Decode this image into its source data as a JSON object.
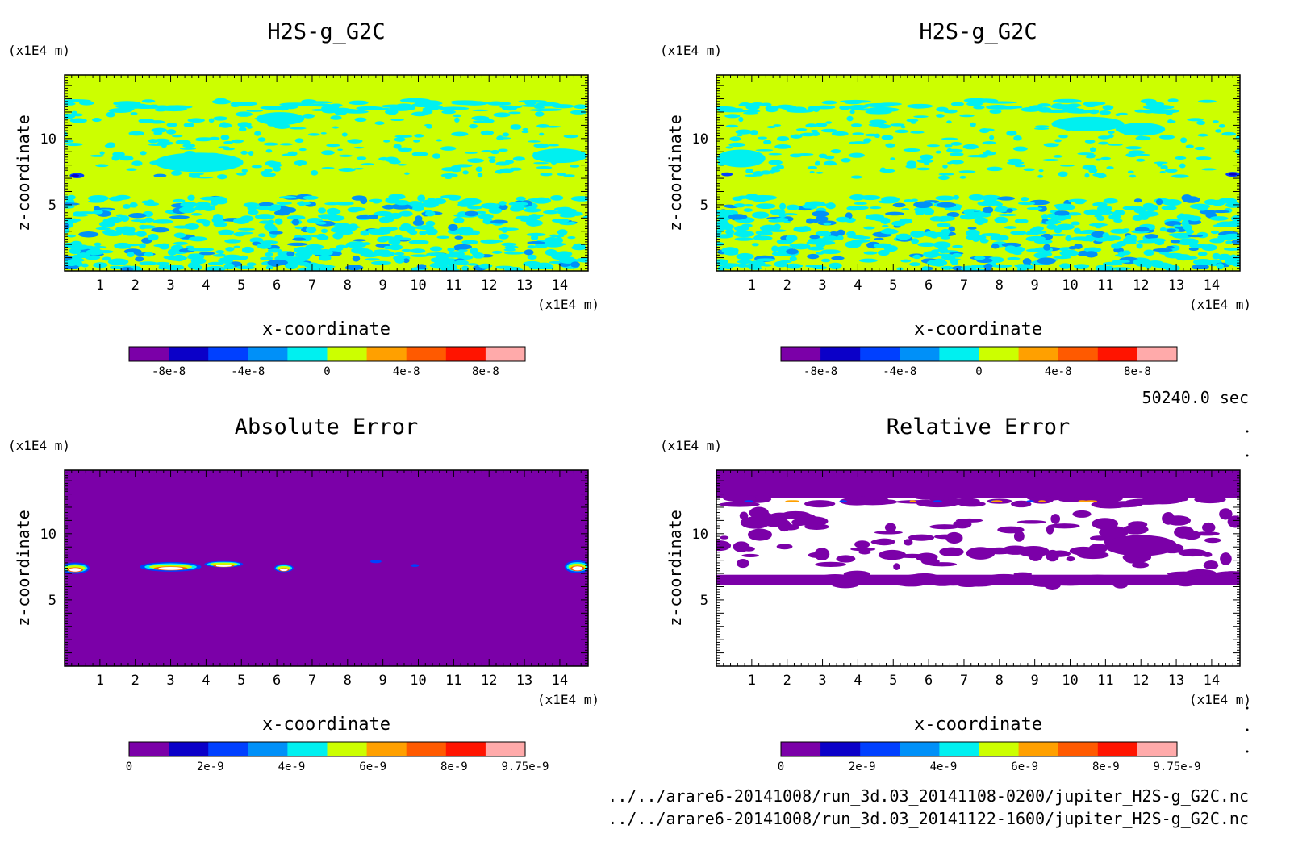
{
  "time_label": "50240.0 sec",
  "files": [
    "../../arare6-20141008/run_3d.03_20141108-0200/jupiter_H2S-g_G2C.nc",
    "../../arare6-20141008/run_3d.03_20141122-1600/jupiter_H2S-g_G2C.nc"
  ],
  "palette": [
    "#7b00a8",
    "#0b00c8",
    "#0040ff",
    "#0090f8",
    "#00f0f0",
    "#ccff00",
    "#ffa000",
    "#ff5a00",
    "#ff1400",
    "#ffaaaa"
  ],
  "chart_data": [
    {
      "type": "heatmap",
      "title": "H2S-g_G2C",
      "xlabel": "x-coordinate",
      "ylabel": "z-coordinate",
      "x_unit": "(x1E4 m)",
      "y_unit": "(x1E4 m)",
      "xlim": [
        0,
        14.8
      ],
      "ylim": [
        0,
        14.8
      ],
      "xticks": [
        "1",
        "2",
        "3",
        "4",
        "5",
        "6",
        "7",
        "8",
        "9",
        "10",
        "11",
        "12",
        "13",
        "14"
      ],
      "yticks": [
        "5",
        "10"
      ],
      "colorbar_labels": [
        "-8e-8",
        "-4e-8",
        "0",
        "4e-8",
        "8e-8"
      ],
      "colorbar_levels": [
        -1e-07,
        -8e-08,
        -6e-08,
        -4e-08,
        -2e-08,
        0,
        2e-08,
        4e-08,
        6e-08,
        8e-08,
        1e-07
      ],
      "pattern": "field_a"
    },
    {
      "type": "heatmap",
      "title": "H2S-g_G2C",
      "xlabel": "x-coordinate",
      "ylabel": "z-coordinate",
      "x_unit": "(x1E4 m)",
      "y_unit": "(x1E4 m)",
      "xlim": [
        0,
        14.8
      ],
      "ylim": [
        0,
        14.8
      ],
      "xticks": [
        "1",
        "2",
        "3",
        "4",
        "5",
        "6",
        "7",
        "8",
        "9",
        "10",
        "11",
        "12",
        "13",
        "14"
      ],
      "yticks": [
        "5",
        "10"
      ],
      "colorbar_labels": [
        "-8e-8",
        "-4e-8",
        "0",
        "4e-8",
        "8e-8"
      ],
      "colorbar_levels": [
        -1e-07,
        -8e-08,
        -6e-08,
        -4e-08,
        -2e-08,
        0,
        2e-08,
        4e-08,
        6e-08,
        8e-08,
        1e-07
      ],
      "pattern": "field_b"
    },
    {
      "type": "heatmap",
      "title": "Absolute Error",
      "xlabel": "x-coordinate",
      "ylabel": "z-coordinate",
      "x_unit": "(x1E4 m)",
      "y_unit": "(x1E4 m)",
      "xlim": [
        0,
        14.8
      ],
      "ylim": [
        0,
        14.8
      ],
      "xticks": [
        "1",
        "2",
        "3",
        "4",
        "5",
        "6",
        "7",
        "8",
        "9",
        "10",
        "11",
        "12",
        "13",
        "14"
      ],
      "yticks": [
        "5",
        "10"
      ],
      "colorbar_labels": [
        "0",
        "2e-9",
        "4e-9",
        "6e-9",
        "8e-9",
        "9.75e-9"
      ],
      "colorbar_levels": [
        0,
        9.75e-10,
        1.95e-09,
        2.925e-09,
        3.9e-09,
        4.875e-09,
        5.85e-09,
        6.825e-09,
        7.8e-09,
        8.775e-09,
        9.75e-09
      ],
      "pattern": "abs_error"
    },
    {
      "type": "heatmap",
      "title": "Relative Error",
      "xlabel": "x-coordinate",
      "ylabel": "z-coordinate",
      "x_unit": "(x1E4 m)",
      "y_unit": "(x1E4 m)",
      "xlim": [
        0,
        14.8
      ],
      "ylim": [
        0,
        14.8
      ],
      "xticks": [
        "1",
        "2",
        "3",
        "4",
        "5",
        "6",
        "7",
        "8",
        "9",
        "10",
        "11",
        "12",
        "13",
        "14"
      ],
      "yticks": [
        "5",
        "10"
      ],
      "colorbar_labels": [
        "0",
        "2e-9",
        "4e-9",
        "6e-9",
        "8e-9",
        "9.75e-9"
      ],
      "colorbar_levels": [
        0,
        9.75e-10,
        1.95e-09,
        2.925e-09,
        3.9e-09,
        4.875e-09,
        5.85e-09,
        6.825e-09,
        7.8e-09,
        8.775e-09,
        9.75e-09
      ],
      "pattern": "rel_error"
    }
  ]
}
